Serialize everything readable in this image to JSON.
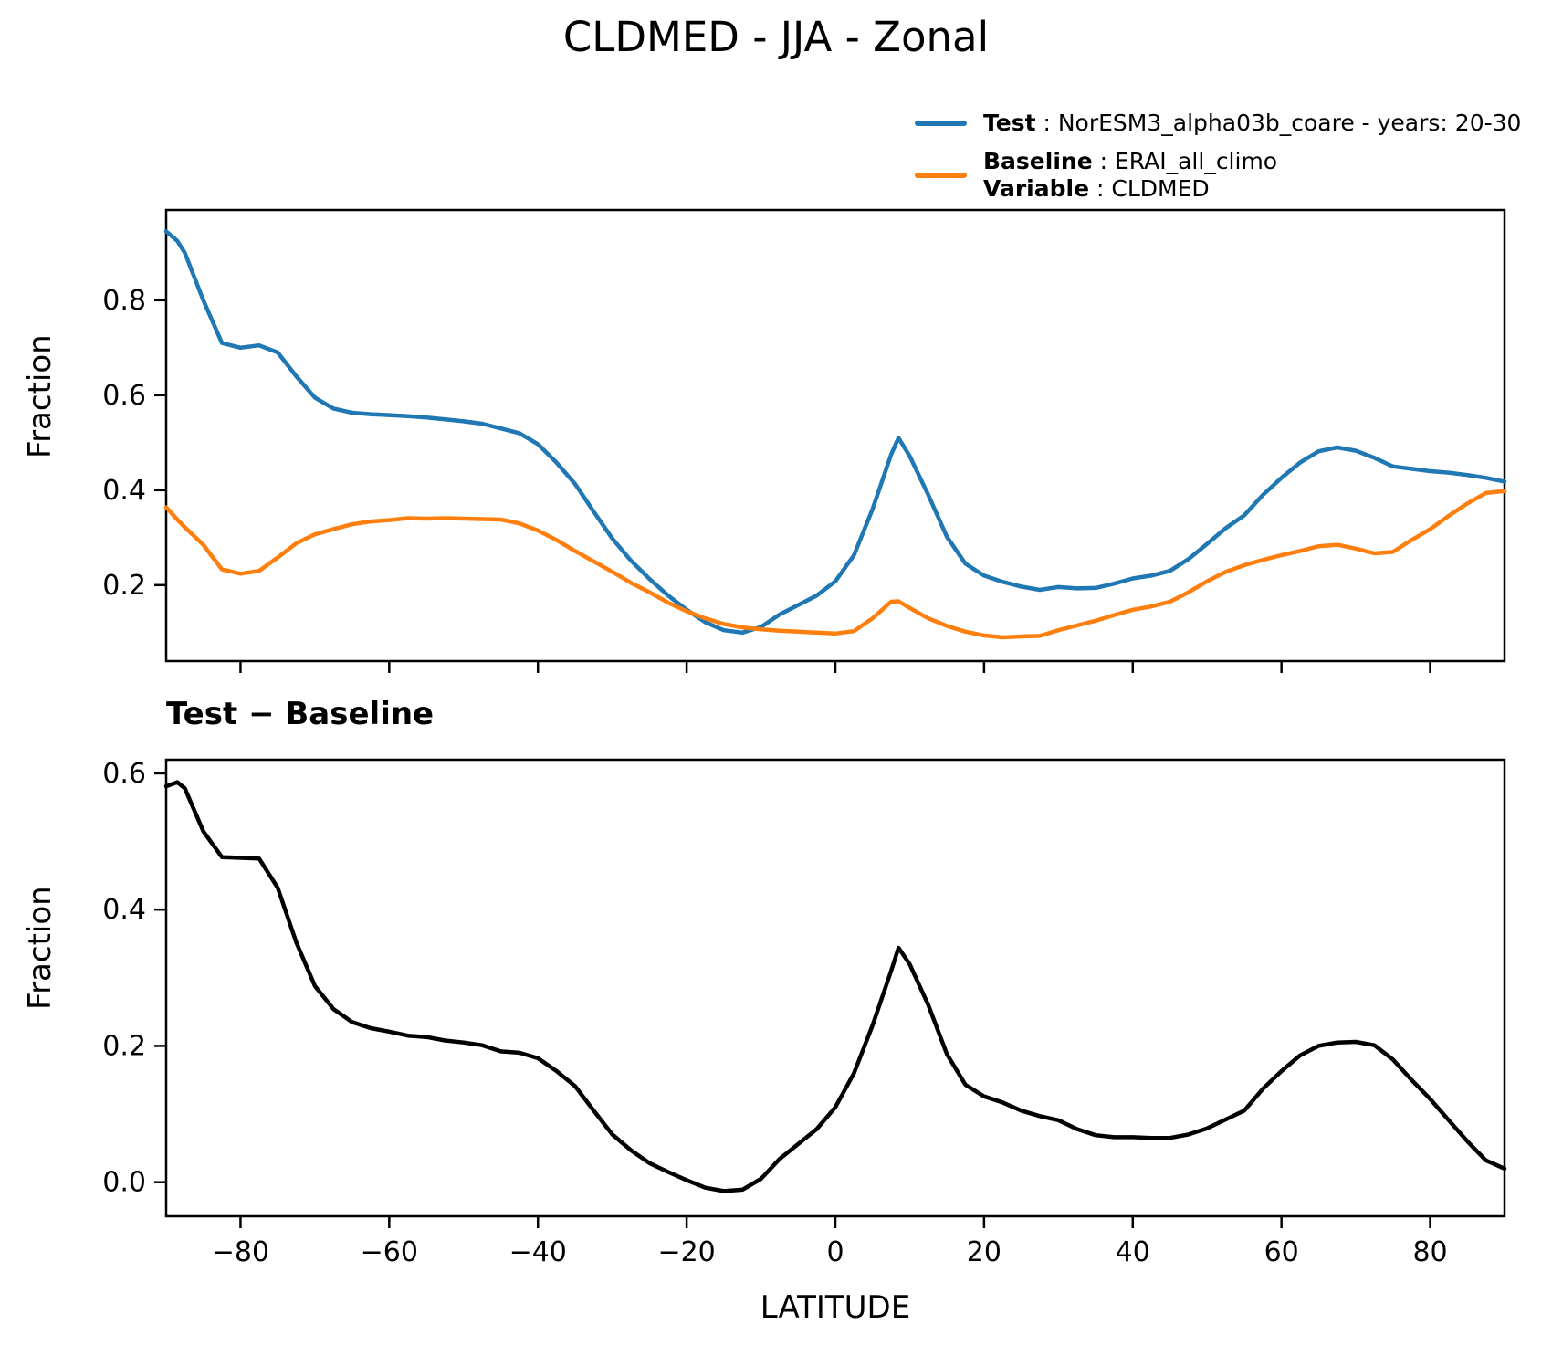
{
  "figure": {
    "title": "CLDMED - JJA - Zonal",
    "background_color": "#ffffff",
    "text_color": "#000000"
  },
  "legend": {
    "position": "top-right-above-axes",
    "frame": false,
    "test": {
      "bold": "Test",
      "rest": " : NorESM3_alpha03b_coare - years: 20-30",
      "color": "#1f77b4"
    },
    "baseline": {
      "bold": "Baseline",
      "rest": " : ERAI_all_climo",
      "color": "#ff7f0e"
    },
    "variable": {
      "bold": "Variable",
      "rest": " : CLDMED"
    }
  },
  "chart_data": [
    {
      "type": "line",
      "title": "CLDMED - JJA - Zonal",
      "xlabel": "",
      "ylabel": "Fraction",
      "xlim": [
        -90,
        90
      ],
      "ylim": [
        0.04,
        0.99
      ],
      "xticks": [
        -80,
        -60,
        -40,
        -20,
        0,
        20,
        40,
        60,
        80
      ],
      "yticks": [
        0.2,
        0.4,
        0.6,
        0.8
      ],
      "show_xtick_labels": false,
      "grid": false,
      "x": [
        -90,
        -88.5,
        -87.5,
        -85,
        -82.5,
        -80,
        -77.5,
        -75,
        -72.5,
        -70,
        -67.5,
        -65,
        -62.5,
        -60,
        -57.5,
        -55,
        -52.5,
        -50,
        -47.5,
        -45,
        -42.5,
        -40,
        -37.5,
        -35,
        -32.5,
        -30,
        -27.5,
        -25,
        -22.5,
        -20,
        -17.5,
        -15,
        -12.5,
        -10,
        -7.5,
        -5,
        -2.5,
        0,
        2.5,
        5,
        7.5,
        8.5,
        10,
        12.5,
        15,
        17.5,
        20,
        22.5,
        25,
        27.5,
        30,
        32.5,
        35,
        37.5,
        40,
        42.5,
        45,
        47.5,
        50,
        52.5,
        55,
        57.5,
        60,
        62.5,
        65,
        67.5,
        70,
        72.5,
        75,
        77.5,
        80,
        82.5,
        85,
        87.5,
        90
      ],
      "series": [
        {
          "name": "Test : NorESM3_alpha03b_coare - years: 20-30",
          "color": "#1f77b4",
          "linewidth": 4.5,
          "values": [
            0.945,
            0.925,
            0.9,
            0.8,
            0.71,
            0.7,
            0.705,
            0.69,
            0.64,
            0.595,
            0.572,
            0.563,
            0.56,
            0.558,
            0.556,
            0.553,
            0.549,
            0.545,
            0.54,
            0.53,
            0.52,
            0.497,
            0.458,
            0.413,
            0.355,
            0.298,
            0.252,
            0.213,
            0.178,
            0.148,
            0.122,
            0.105,
            0.1,
            0.112,
            0.138,
            0.158,
            0.178,
            0.208,
            0.263,
            0.36,
            0.475,
            0.51,
            0.472,
            0.39,
            0.302,
            0.245,
            0.22,
            0.207,
            0.197,
            0.19,
            0.196,
            0.193,
            0.194,
            0.203,
            0.214,
            0.22,
            0.23,
            0.255,
            0.287,
            0.32,
            0.347,
            0.39,
            0.426,
            0.458,
            0.482,
            0.49,
            0.483,
            0.468,
            0.45,
            0.445,
            0.44,
            0.437,
            0.432,
            0.426,
            0.418
          ]
        },
        {
          "name": "Baseline : ERAI_all_climo",
          "color": "#ff7f0e",
          "linewidth": 4.5,
          "values": [
            0.364,
            0.338,
            0.322,
            0.285,
            0.233,
            0.224,
            0.23,
            0.258,
            0.288,
            0.307,
            0.318,
            0.328,
            0.334,
            0.337,
            0.341,
            0.34,
            0.341,
            0.34,
            0.339,
            0.338,
            0.33,
            0.315,
            0.295,
            0.272,
            0.25,
            0.228,
            0.205,
            0.185,
            0.163,
            0.145,
            0.13,
            0.118,
            0.111,
            0.107,
            0.104,
            0.102,
            0.1,
            0.098,
            0.103,
            0.13,
            0.165,
            0.166,
            0.152,
            0.13,
            0.114,
            0.102,
            0.094,
            0.09,
            0.092,
            0.093,
            0.105,
            0.115,
            0.125,
            0.137,
            0.148,
            0.155,
            0.165,
            0.185,
            0.208,
            0.228,
            0.242,
            0.253,
            0.263,
            0.272,
            0.282,
            0.285,
            0.277,
            0.267,
            0.27,
            0.295,
            0.318,
            0.346,
            0.372,
            0.394,
            0.398
          ]
        }
      ]
    },
    {
      "type": "line",
      "title": "Test − Baseline",
      "xlabel": "LATITUDE",
      "ylabel": "Fraction",
      "xlim": [
        -90,
        90
      ],
      "ylim": [
        -0.05,
        0.62
      ],
      "xticks": [
        -80,
        -60,
        -40,
        -20,
        0,
        20,
        40,
        60,
        80
      ],
      "yticks": [
        0.0,
        0.2,
        0.4,
        0.6
      ],
      "show_xtick_labels": true,
      "grid": false,
      "x": [
        -90,
        -88.5,
        -87.5,
        -85,
        -82.5,
        -80,
        -77.5,
        -75,
        -72.5,
        -70,
        -67.5,
        -65,
        -62.5,
        -60,
        -57.5,
        -55,
        -52.5,
        -50,
        -47.5,
        -45,
        -42.5,
        -40,
        -37.5,
        -35,
        -32.5,
        -30,
        -27.5,
        -25,
        -22.5,
        -20,
        -17.5,
        -15,
        -12.5,
        -10,
        -7.5,
        -5,
        -2.5,
        0,
        2.5,
        5,
        7.5,
        8.5,
        10,
        12.5,
        15,
        17.5,
        20,
        22.5,
        25,
        27.5,
        30,
        32.5,
        35,
        37.5,
        40,
        42.5,
        45,
        47.5,
        50,
        52.5,
        55,
        57.5,
        60,
        62.5,
        65,
        67.5,
        70,
        72.5,
        75,
        77.5,
        80,
        82.5,
        85,
        87.5,
        90
      ],
      "series": [
        {
          "name": "Test − Baseline",
          "color": "#000000",
          "linewidth": 4.5,
          "values": [
            0.581,
            0.587,
            0.578,
            0.515,
            0.477,
            0.476,
            0.475,
            0.432,
            0.352,
            0.288,
            0.254,
            0.235,
            0.226,
            0.221,
            0.215,
            0.213,
            0.208,
            0.205,
            0.201,
            0.192,
            0.19,
            0.182,
            0.163,
            0.141,
            0.105,
            0.07,
            0.047,
            0.028,
            0.015,
            0.003,
            -0.008,
            -0.013,
            -0.011,
            0.005,
            0.034,
            0.056,
            0.078,
            0.11,
            0.16,
            0.23,
            0.31,
            0.344,
            0.32,
            0.26,
            0.188,
            0.143,
            0.126,
            0.117,
            0.105,
            0.097,
            0.091,
            0.078,
            0.069,
            0.066,
            0.066,
            0.065,
            0.065,
            0.07,
            0.079,
            0.092,
            0.105,
            0.137,
            0.163,
            0.186,
            0.2,
            0.205,
            0.206,
            0.201,
            0.18,
            0.15,
            0.122,
            0.091,
            0.06,
            0.032,
            0.02
          ]
        }
      ]
    }
  ]
}
